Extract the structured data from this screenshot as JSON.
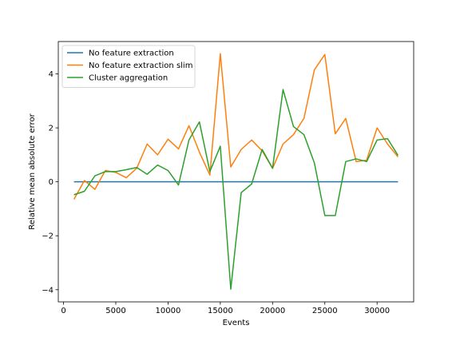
{
  "chart_data": {
    "type": "line",
    "title": "",
    "xlabel": "Events",
    "ylabel": "Relative mean absolute error",
    "xlim": [
      -500,
      33500
    ],
    "ylim": [
      -4.45,
      5.2
    ],
    "xticks": [
      0,
      5000,
      10000,
      15000,
      20000,
      25000,
      30000
    ],
    "yticks": [
      -4,
      -2,
      0,
      2,
      4
    ],
    "grid": false,
    "legend_position": "upper left",
    "x": [
      1000,
      2000,
      3000,
      4000,
      5000,
      6000,
      7000,
      8000,
      9000,
      10000,
      11000,
      12000,
      13000,
      14000,
      15000,
      16000,
      17000,
      18000,
      19000,
      20000,
      21000,
      22000,
      23000,
      24000,
      25000,
      26000,
      27000,
      28000,
      29000,
      30000,
      31000,
      32000
    ],
    "series": [
      {
        "name": "No feature extraction",
        "color": "#1f77b4",
        "values": [
          0,
          0,
          0,
          0,
          0,
          0,
          0,
          0,
          0,
          0,
          0,
          0,
          0,
          0,
          0,
          0,
          0,
          0,
          0,
          0,
          0,
          0,
          0,
          0,
          0,
          0,
          0,
          0,
          0,
          0,
          0,
          0
        ]
      },
      {
        "name": "No feature extraction slim",
        "color": "#ff7f0e",
        "values": [
          -0.65,
          0.05,
          -0.28,
          0.42,
          0.35,
          0.15,
          0.5,
          1.4,
          1.0,
          1.58,
          1.22,
          2.08,
          1.1,
          0.25,
          4.75,
          0.55,
          1.2,
          1.55,
          1.15,
          0.5,
          1.4,
          1.75,
          2.35,
          4.15,
          4.72,
          1.78,
          2.35,
          0.75,
          0.8,
          2.0,
          1.4,
          0.92
        ]
      },
      {
        "name": "Cluster aggregation",
        "color": "#2ca02c",
        "values": [
          -0.48,
          -0.35,
          0.22,
          0.38,
          0.38,
          0.45,
          0.53,
          0.28,
          0.62,
          0.42,
          -0.12,
          1.55,
          2.22,
          0.38,
          1.32,
          -3.98,
          -0.4,
          -0.08,
          1.2,
          0.5,
          3.42,
          2.05,
          1.75,
          0.7,
          -1.25,
          -1.25,
          0.75,
          0.85,
          0.75,
          1.55,
          1.6,
          0.98
        ]
      }
    ]
  }
}
